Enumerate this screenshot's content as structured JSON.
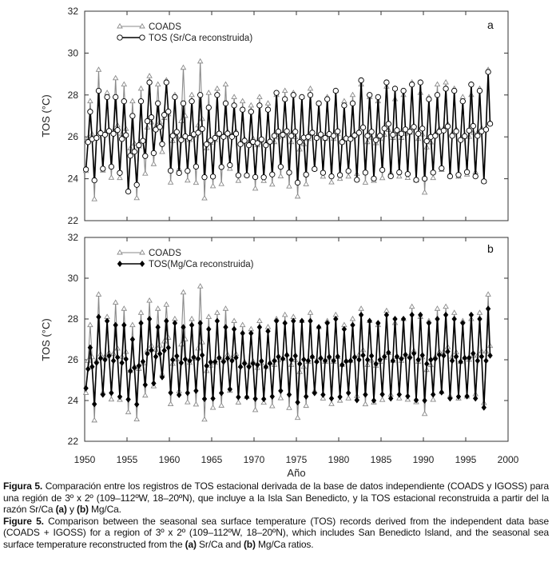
{
  "chart_data": [
    {
      "type": "line",
      "panel_label": "a",
      "ylabel": "TOS (°C)",
      "xlabel": "",
      "ylim": [
        22,
        32
      ],
      "xlim": [
        1950,
        2000
      ],
      "yticks": [
        "22",
        "24",
        "26",
        "28",
        "30",
        "32"
      ],
      "grid": false,
      "legend_position": "top-left",
      "legend": [
        "COADS",
        "TOS (Sr/Ca reconstruida)"
      ],
      "seasonal_years": [
        1950,
        1997
      ],
      "series": [
        {
          "name": "COADS",
          "color": "#8a8a8a",
          "marker": "triangle",
          "annual_max": [
            27.7,
            29.2,
            28.1,
            28.8,
            28.5,
            27.7,
            28.3,
            28.9,
            28.5,
            28.7,
            28.0,
            29.3,
            28.0,
            29.6,
            28.1,
            28.3,
            28.5,
            27.9,
            27.7,
            27.5,
            27.9,
            27.6,
            28.0,
            28.2,
            28.1,
            27.9,
            28.3,
            27.6,
            27.9,
            28.2,
            27.7,
            28.0,
            28.5,
            27.9,
            27.7,
            28.4,
            27.8,
            28.0,
            28.6,
            28.1,
            27.9,
            28.5,
            28.6,
            28.3,
            27.9,
            28.0,
            28.3,
            29.2
          ],
          "annual_min": [
            24.2,
            22.7,
            24.2,
            23.8,
            23.8,
            23.2,
            22.8,
            24.0,
            24.5,
            25.1,
            23.6,
            24.2,
            23.7,
            23.5,
            22.8,
            23.4,
            23.5,
            24.3,
            23.7,
            24.0,
            23.3,
            23.7,
            23.5,
            23.9,
            23.4,
            22.9,
            23.5,
            24.3,
            23.9,
            23.6,
            23.8,
            23.9,
            24.0,
            23.6,
            23.7,
            23.8,
            24.1,
            23.9,
            23.8,
            23.7,
            23.1,
            23.8,
            24.2,
            24.0,
            23.9,
            24.0,
            24.1,
            23.6
          ]
        },
        {
          "name": "TOS (Sr/Ca reconstruida)",
          "color": "#000000",
          "marker": "circle",
          "annual_max": [
            27.2,
            28.2,
            27.9,
            27.9,
            27.7,
            27.0,
            27.7,
            28.6,
            27.6,
            28.6,
            27.9,
            27.6,
            27.7,
            28.0,
            27.4,
            28.0,
            27.6,
            27.5,
            27.3,
            27.2,
            27.5,
            27.3,
            28.1,
            27.8,
            28.0,
            27.9,
            28.0,
            27.6,
            27.8,
            28.2,
            27.5,
            27.6,
            28.7,
            28.0,
            27.9,
            28.6,
            28.3,
            28.2,
            28.5,
            28.6,
            27.8,
            28.0,
            28.3,
            28.2,
            27.7,
            28.5,
            28.2,
            29.1
          ],
          "annual_min": [
            24.3,
            23.7,
            24.3,
            24.4,
            24.1,
            23.2,
            23.5,
            24.9,
            25.1,
            25.5,
            24.2,
            24.1,
            24.2,
            24.4,
            23.9,
            23.9,
            24.4,
            24.5,
            24.0,
            24.0,
            23.9,
            23.9,
            24.0,
            24.4,
            24.1,
            23.6,
            24.0,
            24.3,
            24.1,
            23.9,
            24.0,
            24.2,
            23.7,
            24.1,
            23.8,
            24.2,
            23.9,
            24.1,
            24.0,
            23.7,
            23.8,
            24.1,
            24.3,
            23.9,
            24.0,
            24.1,
            23.9,
            23.6
          ]
        }
      ]
    },
    {
      "type": "line",
      "panel_label": "b",
      "ylabel": "TOS (°C)",
      "xlabel": "Año",
      "ylim": [
        22,
        32
      ],
      "xlim": [
        1950,
        2000
      ],
      "yticks": [
        "22",
        "24",
        "26",
        "28",
        "30",
        "32"
      ],
      "xticks": [
        "1950",
        "1955",
        "1960",
        "1965",
        "1970",
        "1975",
        "1980",
        "1985",
        "1990",
        "1995",
        "2000"
      ],
      "grid": false,
      "legend_position": "top-left",
      "legend": [
        "COADS",
        "TOS(Mg/Ca reconstruida)"
      ],
      "seasonal_years": [
        1950,
        1997
      ],
      "series": [
        {
          "name": "COADS",
          "color": "#8a8a8a",
          "marker": "triangle",
          "same_as": "panel a COADS"
        },
        {
          "name": "TOS(Mg/Ca reconstruida)",
          "color": "#000000",
          "marker": "diamond",
          "annual_max": [
            26.6,
            28.1,
            27.9,
            27.7,
            27.7,
            27.0,
            27.8,
            28.0,
            27.6,
            27.9,
            27.8,
            27.6,
            27.7,
            27.8,
            27.5,
            27.9,
            27.6,
            27.5,
            27.3,
            27.3,
            27.6,
            27.4,
            27.9,
            27.8,
            27.9,
            27.9,
            27.9,
            27.6,
            27.8,
            28.0,
            27.5,
            27.7,
            28.2,
            27.9,
            27.8,
            28.2,
            28.0,
            28.0,
            28.2,
            28.2,
            27.8,
            28.0,
            28.2,
            28.0,
            27.8,
            28.2,
            28.0,
            28.5
          ],
          "annual_min": [
            24.5,
            23.6,
            24.1,
            24.2,
            24.0,
            23.9,
            23.6,
            24.6,
            24.7,
            25.0,
            24.2,
            24.1,
            24.2,
            24.3,
            23.9,
            23.9,
            24.2,
            24.4,
            24.0,
            24.0,
            23.9,
            23.9,
            24.0,
            24.3,
            24.1,
            23.7,
            24.0,
            24.2,
            24.1,
            23.9,
            24.0,
            24.2,
            23.8,
            24.1,
            23.8,
            24.1,
            23.9,
            24.1,
            24.0,
            23.8,
            23.8,
            24.1,
            24.2,
            23.9,
            24.0,
            24.0,
            23.9,
            23.4
          ]
        }
      ]
    }
  ],
  "caption": {
    "es_label": "Figura 5.",
    "es_text_1": " Comparación entre los registros de TOS estacional derivada de la base de datos independiente (COADS y IGOSS) para una región de 3º x 2º (109–112ºW, 18–20ºN), que incluye a la Isla San Benedicto, y la TOS estacional reconstruida a partir del la razón Sr/Ca ",
    "es_a": "(a)",
    "es_text_2": " y ",
    "es_b": "(b)",
    "es_text_3": " Mg/Ca.",
    "en_label": "Figure 5.",
    "en_text_1": " Comparison between the seasonal sea surface temperature (TOS) records derived from the independent data base (COADS + IGOSS) for a region of 3º x 2º (109–112ºW, 18–20ºN), which includes San Benedicto Island, and the seasonal sea surface temperature reconstructed from the ",
    "en_a": "(a)",
    "en_text_2": " Sr/Ca and ",
    "en_b": "(b)",
    "en_text_3": " Mg/Ca ratios."
  }
}
